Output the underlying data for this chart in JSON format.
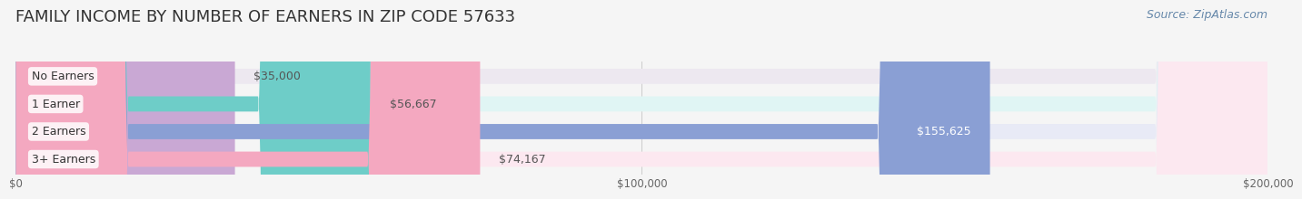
{
  "title": "FAMILY INCOME BY NUMBER OF EARNERS IN ZIP CODE 57633",
  "source": "Source: ZipAtlas.com",
  "categories": [
    "No Earners",
    "1 Earner",
    "2 Earners",
    "3+ Earners"
  ],
  "values": [
    35000,
    56667,
    155625,
    74167
  ],
  "labels": [
    "$35,000",
    "$56,667",
    "$155,625",
    "$74,167"
  ],
  "bar_colors": [
    "#c9a8d4",
    "#6ecdc8",
    "#8a9fd4",
    "#f4a8c0"
  ],
  "bar_bg_colors": [
    "#ede8f0",
    "#e0f5f4",
    "#e8eaf6",
    "#fce8f0"
  ],
  "xlim": [
    0,
    200000
  ],
  "xticks": [
    0,
    100000,
    200000
  ],
  "xticklabels": [
    "$0",
    "$100,000",
    "$200,000"
  ],
  "bg_color": "#f5f5f5",
  "title_fontsize": 13,
  "source_fontsize": 9,
  "label_fontsize": 9,
  "category_fontsize": 9
}
